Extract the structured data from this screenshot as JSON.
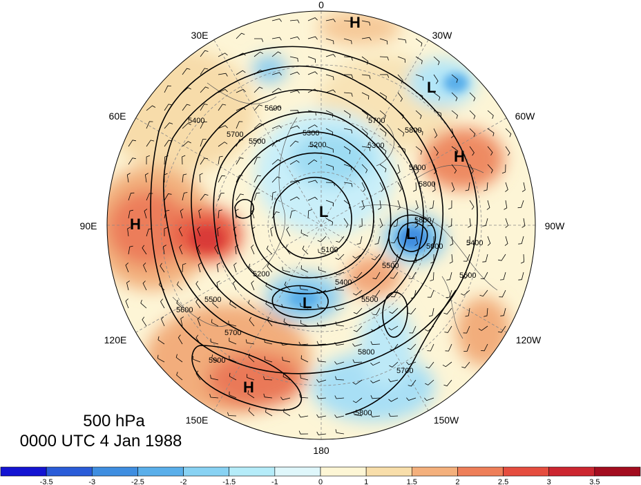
{
  "title": {
    "level": "500 hPa",
    "time": "0000 UTC 4 Jan 1988"
  },
  "longitude_labels": {
    "lon_0": "0",
    "lon_30w": "30W",
    "lon_60w": "60W",
    "lon_90w": "90W",
    "lon_120w": "120W",
    "lon_150w": "150W",
    "lon_180": "180",
    "lon_150e": "150E",
    "lon_120e": "120E",
    "lon_90e": "90E",
    "lon_60e": "60E",
    "lon_30e": "30E"
  },
  "centers": {
    "h_greenland": "H",
    "l_atlantic": "L",
    "h_north_america": "H",
    "h_asia": "H",
    "l_pole": "L",
    "l_canada": "L",
    "l_siberia": "L",
    "h_pacific": "H"
  },
  "contour_labels": {
    "c1": "5400",
    "c2": "5700",
    "c3": "5500",
    "c4": "5600",
    "c5": "5300",
    "c6": "5200",
    "c7": "5700",
    "c8": "5800",
    "c9": "5300",
    "c10": "5800",
    "c11": "5100",
    "c12": "5600",
    "c13": "5500",
    "c14": "5200",
    "c15": "5500",
    "c16": "5600",
    "c17": "5400",
    "c18": "5400",
    "c19": "5500",
    "c20": "5700",
    "c21": "5600",
    "c22": "5800",
    "c23": "5900",
    "c24": "5700",
    "c25": "5800",
    "c26": "5800",
    "c27": "5600"
  },
  "colorbar": {
    "ticks": [
      "-3.5",
      "-3",
      "-2.5",
      "-2",
      "-1.5",
      "-1",
      "0",
      "1",
      "1.5",
      "2",
      "2.5",
      "3",
      "3.5"
    ],
    "colors": [
      "#1414d2",
      "#2a5cd8",
      "#3f8ee0",
      "#5aafea",
      "#88d2f3",
      "#b5ecf9",
      "#dff7fb",
      "#fdf6d5",
      "#f8deaa",
      "#f4b07c",
      "#ee7f59",
      "#e54d3f",
      "#cc2630",
      "#a30d1f"
    ]
  }
}
